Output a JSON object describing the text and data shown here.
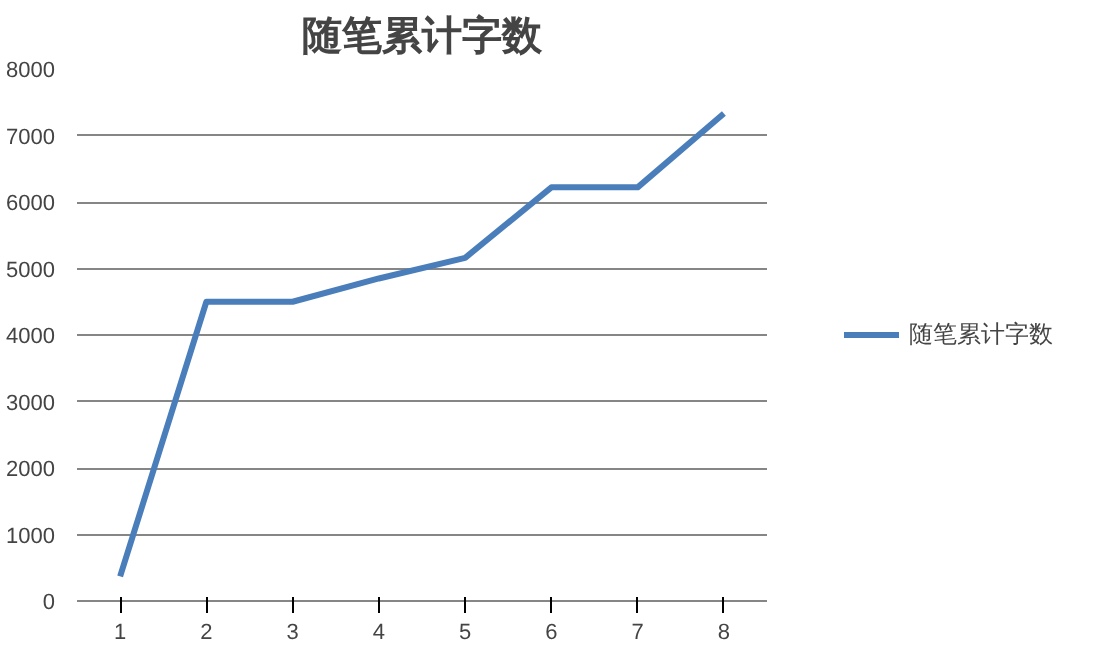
{
  "chart_data": {
    "type": "line",
    "title": "随笔累计字数",
    "categories": [
      "1",
      "2",
      "3",
      "4",
      "5",
      "6",
      "7",
      "8"
    ],
    "series": [
      {
        "name": "随笔累计字数",
        "color": "#4a7ebb",
        "values": [
          370,
          4500,
          4500,
          4850,
          5160,
          6220,
          6220,
          7330
        ]
      }
    ],
    "ylim": [
      0,
      8000
    ],
    "yticks": [
      0,
      1000,
      2000,
      3000,
      4000,
      5000,
      6000,
      7000,
      8000
    ],
    "grid": "y",
    "legend": "right",
    "marker": "none",
    "line_style": "solid"
  }
}
